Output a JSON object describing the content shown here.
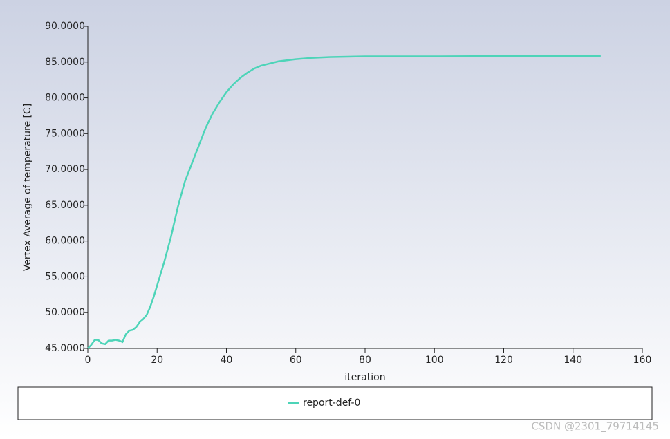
{
  "chart_data": {
    "type": "line",
    "xlabel": "iteration",
    "ylabel": "Vertex Average of temperature [C]",
    "x": [
      0,
      1,
      2,
      3,
      4,
      5,
      6,
      7,
      8,
      9,
      10,
      11,
      12,
      13,
      14,
      15,
      16,
      17,
      18,
      19,
      20,
      21,
      22,
      24,
      26,
      28,
      30,
      32,
      34,
      36,
      38,
      40,
      42,
      44,
      46,
      48,
      50,
      55,
      60,
      65,
      70,
      80,
      90,
      100,
      120,
      148
    ],
    "series": [
      {
        "name": "report-def-0",
        "color": "#4dd4b8",
        "values": [
          45.0,
          45.5,
          46.2,
          46.2,
          45.7,
          45.6,
          46.1,
          46.1,
          46.2,
          46.1,
          45.9,
          47.0,
          47.5,
          47.6,
          48.0,
          48.7,
          49.1,
          49.7,
          50.8,
          52.2,
          53.8,
          55.4,
          57.0,
          60.6,
          64.8,
          68.3,
          70.8,
          73.3,
          75.8,
          77.8,
          79.4,
          80.8,
          81.9,
          82.8,
          83.5,
          84.1,
          84.5,
          85.1,
          85.4,
          85.6,
          85.7,
          85.8,
          85.8,
          85.8,
          85.85,
          85.85
        ]
      }
    ],
    "xlim": [
      0,
      160
    ],
    "xticks": [
      0,
      20,
      40,
      60,
      80,
      100,
      120,
      140,
      160
    ],
    "ylim": [
      45,
      90
    ],
    "yticks": [
      {
        "value": 45,
        "label": "45.0000"
      },
      {
        "value": 50,
        "label": "50.0000"
      },
      {
        "value": 55,
        "label": "55.0000"
      },
      {
        "value": 60,
        "label": "60.0000"
      },
      {
        "value": 65,
        "label": "65.0000"
      },
      {
        "value": 70,
        "label": "70.0000"
      },
      {
        "value": 75,
        "label": "75.0000"
      },
      {
        "value": 80,
        "label": "80.0000"
      },
      {
        "value": 85,
        "label": "85.0000"
      },
      {
        "value": 90,
        "label": "90.0000"
      }
    ],
    "watermark": "CSDN @2301_79714145"
  }
}
